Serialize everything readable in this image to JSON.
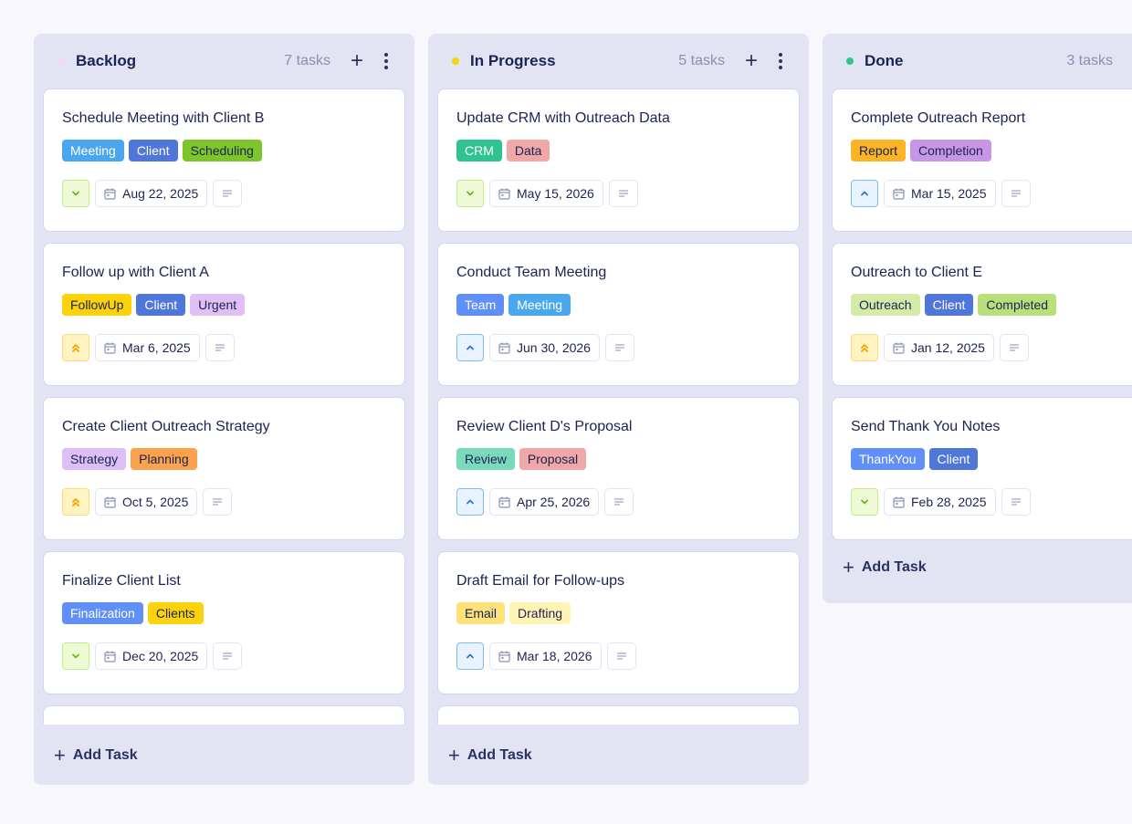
{
  "columns": [
    {
      "title": "Backlog",
      "dot_color": "#f3d6f5",
      "count": "7 tasks",
      "add_label": "Add Task",
      "cards": [
        {
          "title": "Schedule Meeting with Client B",
          "priority": "low",
          "date": "Aug 22, 2025",
          "tags": [
            {
              "label": "Meeting",
              "bg": "#4aa7ee",
              "light": true
            },
            {
              "label": "Client",
              "bg": "#4f77d9",
              "light": true
            },
            {
              "label": "Scheduling",
              "bg": "#7ec52a",
              "light": false
            }
          ]
        },
        {
          "title": "Follow up with Client A",
          "priority": "med",
          "date": "Mar 6, 2025",
          "tags": [
            {
              "label": "FollowUp",
              "bg": "#fcd20a",
              "light": false
            },
            {
              "label": "Client",
              "bg": "#4f77d9",
              "light": true
            },
            {
              "label": "Urgent",
              "bg": "#e0bff7",
              "light": false
            }
          ]
        },
        {
          "title": "Create Client Outreach Strategy",
          "priority": "med",
          "date": "Oct 5, 2025",
          "tags": [
            {
              "label": "Strategy",
              "bg": "#dcbff6",
              "light": false
            },
            {
              "label": "Planning",
              "bg": "#fba24e",
              "light": false
            }
          ]
        },
        {
          "title": "Finalize Client List",
          "priority": "low",
          "date": "Dec 20, 2025",
          "tags": [
            {
              "label": "Finalization",
              "bg": "#5f8ff7",
              "light": true
            },
            {
              "label": "Clients",
              "bg": "#fcd20a",
              "light": false
            }
          ]
        }
      ]
    },
    {
      "title": "In Progress",
      "dot_color": "#fcd20a",
      "count": "5 tasks",
      "add_label": "Add Task",
      "cards": [
        {
          "title": "Update CRM with Outreach Data",
          "priority": "low",
          "date": "May 15, 2026",
          "tags": [
            {
              "label": "CRM",
              "bg": "#2fc48f",
              "light": true
            },
            {
              "label": "Data",
              "bg": "#f0a7a7",
              "light": false
            }
          ]
        },
        {
          "title": "Conduct Team Meeting",
          "priority": "high",
          "date": "Jun 30, 2026",
          "tags": [
            {
              "label": "Team",
              "bg": "#5f8ff7",
              "light": true
            },
            {
              "label": "Meeting",
              "bg": "#4aa7ee",
              "light": true
            }
          ]
        },
        {
          "title": "Review Client D's Proposal",
          "priority": "high",
          "date": "Apr 25, 2026",
          "tags": [
            {
              "label": "Review",
              "bg": "#7ad9bb",
              "light": false
            },
            {
              "label": "Proposal",
              "bg": "#f0a7a7",
              "light": false
            }
          ]
        },
        {
          "title": "Draft Email for Follow-ups",
          "priority": "high",
          "date": "Mar 18, 2026",
          "tags": [
            {
              "label": "Email",
              "bg": "#fde27a",
              "light": false
            },
            {
              "label": "Drafting",
              "bg": "#fff4b3",
              "light": false
            }
          ]
        }
      ]
    },
    {
      "title": "Done",
      "dot_color": "#2fc48f",
      "count": "3 tasks",
      "add_label": "Add Task",
      "cards": [
        {
          "title": "Complete Outreach Report",
          "priority": "high",
          "date": "Mar 15, 2025",
          "tags": [
            {
              "label": "Report",
              "bg": "#fcb427",
              "light": false
            },
            {
              "label": "Completion",
              "bg": "#c896e6",
              "light": false
            }
          ]
        },
        {
          "title": "Outreach to Client E",
          "priority": "med",
          "date": "Jan 12, 2025",
          "tags": [
            {
              "label": "Outreach",
              "bg": "#d2eba7",
              "light": false
            },
            {
              "label": "Client",
              "bg": "#4f77d9",
              "light": true
            },
            {
              "label": "Completed",
              "bg": "#b7e07a",
              "light": false
            }
          ]
        },
        {
          "title": "Send Thank You Notes",
          "priority": "low",
          "date": "Feb 28, 2025",
          "tags": [
            {
              "label": "ThankYou",
              "bg": "#5f8ff7",
              "light": true
            },
            {
              "label": "Client",
              "bg": "#4f77d9",
              "light": true
            }
          ]
        }
      ]
    }
  ]
}
